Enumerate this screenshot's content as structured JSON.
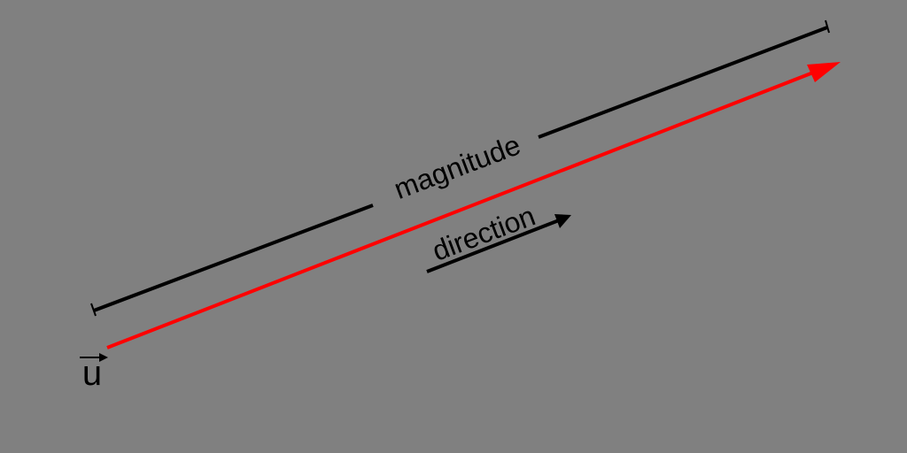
{
  "diagram": {
    "vector_symbol": "u",
    "magnitude_label": "magnitude",
    "direction_label": "direction",
    "vector_color": "#ff0000",
    "annotation_color": "#000000",
    "background_color": "#808080"
  }
}
